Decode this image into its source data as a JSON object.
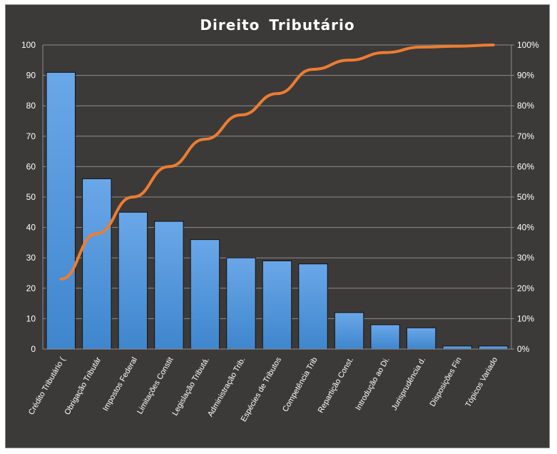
{
  "chart_data": {
    "type": "bar",
    "title": "Direito Tributário",
    "categories": [
      "Crédito Tributário (",
      "Obrigação Tributár",
      "Impostos Federal",
      "Limitações Constit",
      "Legislação Tributá.",
      "Administração Trib.",
      "Espécies de Tributos",
      "Competência Trib",
      "Repartição Const.",
      "Introdução ao Di.",
      "Jurisprudência d.",
      "Disposições Fin",
      "Tópicos Variado"
    ],
    "series": [
      {
        "type": "bar",
        "axis": "left",
        "values": [
          91,
          56,
          45,
          42,
          36,
          30,
          29,
          28,
          12,
          8,
          7,
          1,
          1
        ]
      },
      {
        "type": "line",
        "axis": "right",
        "values": [
          23,
          38,
          50,
          60,
          69,
          77,
          84,
          92,
          95,
          97.5,
          99.3,
          99.6,
          100
        ]
      }
    ],
    "left_axis": {
      "ylim": [
        0,
        100
      ],
      "ticks": [
        "0",
        "10",
        "20",
        "30",
        "40",
        "50",
        "60",
        "70",
        "80",
        "90",
        "100"
      ]
    },
    "right_axis": {
      "ylim": [
        0,
        100
      ],
      "ticks": [
        "0%",
        "10%",
        "20%",
        "30%",
        "40%",
        "50%",
        "60%",
        "70%",
        "80%",
        "90%",
        "100%"
      ]
    },
    "grid": true,
    "legend": "none",
    "colors": {
      "background": "#3c3a38",
      "bar_fill_top": "#6aa7e8",
      "bar_fill_bottom": "#3f86cd",
      "bar_stroke": "#111111",
      "line": "#ed7d31",
      "grid": "#8c8c8c",
      "text": "#ffffff"
    }
  }
}
